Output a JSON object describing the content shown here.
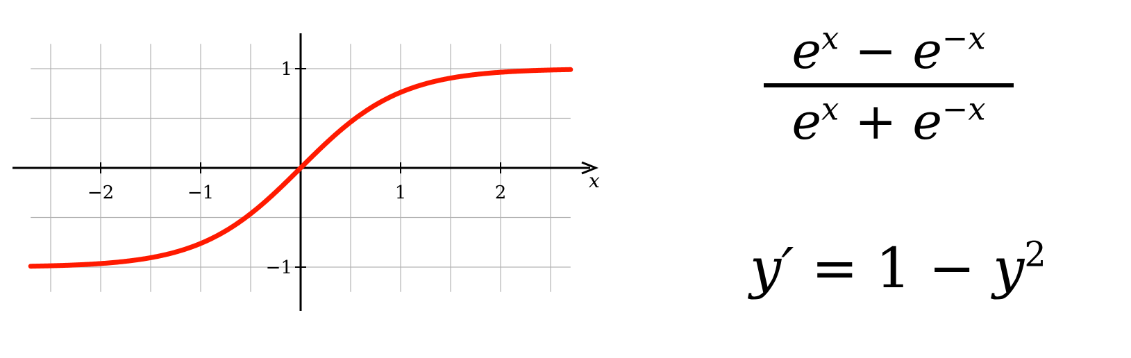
{
  "chart_data": {
    "type": "line",
    "function": "tanh",
    "x": [
      -2.7,
      -2.4,
      -2.1,
      -1.8,
      -1.5,
      -1.2,
      -0.9,
      -0.6,
      -0.3,
      0,
      0.3,
      0.6,
      0.9,
      1.2,
      1.5,
      1.8,
      2.1,
      2.4,
      2.7
    ],
    "series": [
      {
        "values": [
          -0.991,
          -0.984,
          -0.97,
          -0.947,
          -0.905,
          -0.834,
          -0.716,
          -0.537,
          -0.291,
          0,
          0.291,
          0.537,
          0.716,
          0.834,
          0.905,
          0.947,
          0.97,
          0.984,
          0.991
        ]
      }
    ],
    "xlabel": "x",
    "ylabel": "",
    "xticks": [
      -2,
      -1,
      1,
      2
    ],
    "xtick_labels": [
      "−2",
      "−1",
      "1",
      "2"
    ],
    "yticks": [
      1,
      -1
    ],
    "ytick_labels": [
      "1",
      "−1"
    ],
    "xlim": [
      -2.9,
      2.9
    ],
    "ylim": [
      -1.4,
      1.4
    ],
    "grid": true,
    "grid_step": 0.5,
    "colors": {
      "series": "#ff1a00",
      "grid": "#b3b3b3",
      "axis": "#000000"
    }
  },
  "formulas": {
    "fraction": {
      "numerator": {
        "base1": "e",
        "exp1": "x",
        "op": "−",
        "base2": "e",
        "exp2": "−x"
      },
      "denominator": {
        "base1": "e",
        "exp1": "x",
        "op": "+",
        "base2": "e",
        "exp2": "−x"
      }
    },
    "derivative": {
      "lhs": "y′",
      "eq": "=",
      "one": "1",
      "op": "−",
      "y": "y",
      "exp": "2"
    }
  }
}
